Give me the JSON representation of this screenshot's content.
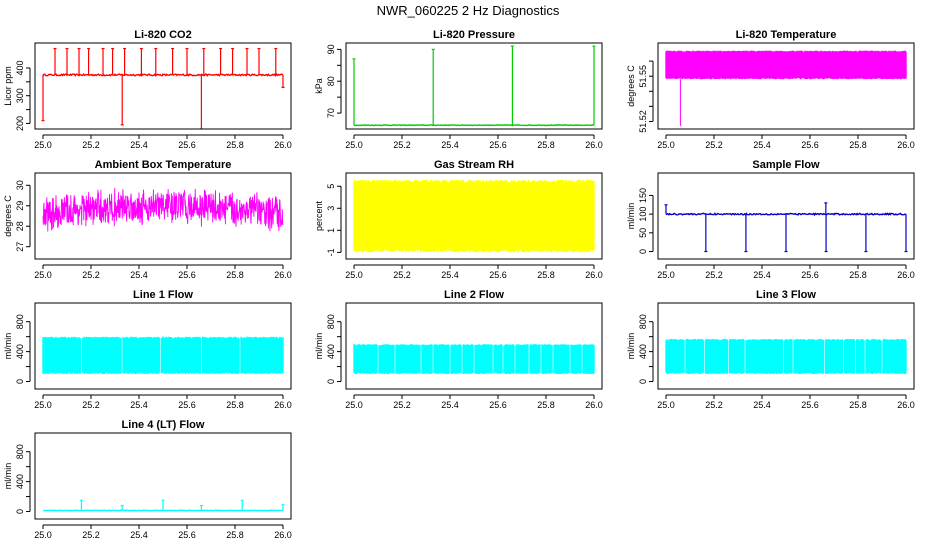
{
  "figure": {
    "title": "NWR_060225 2 Hz Diagnostics"
  },
  "chart_data": [
    {
      "id": "co2",
      "type": "line",
      "title": "Li-820 CO2",
      "ylabel": "Licor ppm",
      "color": "#ff0000",
      "xlim": [
        25.0,
        26.0
      ],
      "ylim": [
        180,
        490
      ],
      "xticks": [
        25.0,
        25.2,
        25.4,
        25.6,
        25.8,
        26.0
      ],
      "xtick_labels": [
        "25.0",
        "25.2",
        "25.4",
        "25.6",
        "25.8",
        "26.0"
      ],
      "yticks": [
        200,
        250,
        300,
        350,
        400
      ],
      "ytick_labels": [
        "200",
        "",
        "300",
        "",
        "400"
      ],
      "series": [
        {
          "name": "CO2",
          "baseline": 375,
          "noise": 3,
          "spikes": [
            [
              25.0,
              210
            ],
            [
              25.05,
              470
            ],
            [
              25.1,
              470
            ],
            [
              25.15,
              470
            ],
            [
              25.19,
              470
            ],
            [
              25.25,
              470
            ],
            [
              25.29,
              470
            ],
            [
              25.33,
              195
            ],
            [
              25.34,
              470
            ],
            [
              25.41,
              470
            ],
            [
              25.47,
              470
            ],
            [
              25.54,
              470
            ],
            [
              25.6,
              470
            ],
            [
              25.66,
              180
            ],
            [
              25.67,
              470
            ],
            [
              25.74,
              470
            ],
            [
              25.79,
              470
            ],
            [
              25.85,
              470
            ],
            [
              25.9,
              470
            ],
            [
              25.97,
              470
            ],
            [
              26.0,
              330
            ]
          ]
        }
      ]
    },
    {
      "id": "pressure",
      "type": "line",
      "title": "Li-820 Pressure",
      "ylabel": "kPa",
      "color": "#00cc00",
      "xlim": [
        25.0,
        26.0
      ],
      "ylim": [
        65,
        92
      ],
      "xticks": [
        25.0,
        25.2,
        25.4,
        25.6,
        25.8,
        26.0
      ],
      "xtick_labels": [
        "25.0",
        "25.2",
        "25.4",
        "25.6",
        "25.8",
        "26.0"
      ],
      "yticks": [
        70,
        75,
        80,
        85,
        90
      ],
      "ytick_labels": [
        "70",
        "",
        "80",
        "",
        "90"
      ],
      "series": [
        {
          "name": "Pressure",
          "baseline": 66.2,
          "noise": 0.1,
          "spikes": [
            [
              25.0,
              87
            ],
            [
              25.33,
              90
            ],
            [
              25.66,
              91
            ],
            [
              26.0,
              91
            ]
          ]
        }
      ]
    },
    {
      "id": "licor_temp",
      "type": "area",
      "title": "Li-820 Temperature",
      "ylabel": "degrees C",
      "color": "#ff00ff",
      "xlim": [
        25.0,
        26.0
      ],
      "ylim": [
        51.515,
        51.572
      ],
      "xticks": [
        25.0,
        25.2,
        25.4,
        25.6,
        25.8,
        26.0
      ],
      "xtick_labels": [
        "25.0",
        "25.2",
        "25.4",
        "25.6",
        "25.8",
        "26.0"
      ],
      "yticks": [
        51.52,
        51.53,
        51.54,
        51.55,
        51.56
      ],
      "ytick_labels": [
        "51.52",
        "",
        "",
        "51.55",
        ""
      ],
      "series": [
        {
          "name": "Temperature",
          "low": 51.548,
          "high": 51.567,
          "dip": [
            25.06,
            51.517
          ]
        }
      ]
    },
    {
      "id": "box_temp",
      "type": "area",
      "title": "Ambient Box Temperature",
      "ylabel": "degrees C",
      "color": "#ff00ff",
      "xlim": [
        25.0,
        26.0
      ],
      "ylim": [
        26.4,
        30.6
      ],
      "xticks": [
        25.0,
        25.2,
        25.4,
        25.6,
        25.8,
        26.0
      ],
      "xtick_labels": [
        "25.0",
        "25.2",
        "25.4",
        "25.6",
        "25.8",
        "26.0"
      ],
      "yticks": [
        27,
        28,
        29,
        30
      ],
      "ytick_labels": [
        "27",
        "28",
        "29",
        "30"
      ],
      "series": [
        {
          "name": "Box Temp",
          "center": 28.6,
          "amp": 0.9,
          "trend": 0.4
        }
      ]
    },
    {
      "id": "rh",
      "type": "area",
      "title": "Gas Stream RH",
      "ylabel": "percent",
      "color": "#ffff00",
      "xlim": [
        25.0,
        26.0
      ],
      "ylim": [
        -1.6,
        6.2
      ],
      "xticks": [
        25.0,
        25.2,
        25.4,
        25.6,
        25.8,
        26.0
      ],
      "xtick_labels": [
        "25.0",
        "25.2",
        "25.4",
        "25.6",
        "25.8",
        "26.0"
      ],
      "yticks": [
        -1,
        1,
        3,
        5
      ],
      "ytick_labels": [
        "-1",
        "1",
        "3",
        "5"
      ],
      "series": [
        {
          "name": "RH",
          "low": -1.0,
          "high": 5.6
        }
      ]
    },
    {
      "id": "sample_flow",
      "type": "line",
      "title": "Sample Flow",
      "ylabel": "ml/min",
      "color": "#0000cc",
      "xlim": [
        25.0,
        26.0
      ],
      "ylim": [
        -20,
        210
      ],
      "xticks": [
        25.0,
        25.2,
        25.4,
        25.6,
        25.8,
        26.0
      ],
      "xtick_labels": [
        "25.0",
        "25.2",
        "25.4",
        "25.6",
        "25.8",
        "26.0"
      ],
      "yticks": [
        0,
        50,
        100,
        150
      ],
      "ytick_labels": [
        "0",
        "50",
        "100",
        "150"
      ],
      "series": [
        {
          "name": "Sample Flow",
          "baseline": 100,
          "noise": 2,
          "spikes": [
            [
              25.0,
              125
            ],
            [
              25.166,
              0
            ],
            [
              25.333,
              0
            ],
            [
              25.5,
              0
            ],
            [
              25.666,
              130
            ],
            [
              25.667,
              0
            ],
            [
              25.833,
              0
            ],
            [
              26.0,
              0
            ]
          ]
        }
      ]
    },
    {
      "id": "line1",
      "type": "area",
      "title": "Line 1 Flow",
      "ylabel": "ml/min",
      "color": "#00ffff",
      "xlim": [
        25.0,
        26.0
      ],
      "ylim": [
        -100,
        1050
      ],
      "xticks": [
        25.0,
        25.2,
        25.4,
        25.6,
        25.8,
        26.0
      ],
      "xtick_labels": [
        "25.0",
        "25.2",
        "25.4",
        "25.6",
        "25.8",
        "26.0"
      ],
      "yticks": [
        0,
        200,
        400,
        600,
        800
      ],
      "ytick_labels": [
        "0",
        "",
        "400",
        "",
        "800"
      ],
      "series": [
        {
          "name": "Line 1",
          "low": 100,
          "high": 600,
          "gaps": [
            25.16,
            25.33,
            25.49,
            25.66,
            25.82
          ]
        }
      ]
    },
    {
      "id": "line2",
      "type": "area",
      "title": "Line 2 Flow",
      "ylabel": "ml/min",
      "color": "#00ffff",
      "xlim": [
        25.0,
        26.0
      ],
      "ylim": [
        -100,
        1050
      ],
      "xticks": [
        25.0,
        25.2,
        25.4,
        25.6,
        25.8,
        26.0
      ],
      "xtick_labels": [
        "25.0",
        "25.2",
        "25.4",
        "25.6",
        "25.8",
        "26.0"
      ],
      "yticks": [
        0,
        200,
        400,
        600,
        800
      ],
      "ytick_labels": [
        "0",
        "",
        "400",
        "",
        "800"
      ],
      "series": [
        {
          "name": "Line 2",
          "low": 100,
          "high": 500,
          "gaps": [
            25.1,
            25.17,
            25.28,
            25.33,
            25.4,
            25.45,
            25.5,
            25.58,
            25.62,
            25.67,
            25.73,
            25.78,
            25.83,
            25.9,
            25.95
          ]
        }
      ]
    },
    {
      "id": "line3",
      "type": "area",
      "title": "Line 3 Flow",
      "ylabel": "ml/min",
      "color": "#00ffff",
      "xlim": [
        25.0,
        26.0
      ],
      "ylim": [
        -100,
        1050
      ],
      "xticks": [
        25.0,
        25.2,
        25.4,
        25.6,
        25.8,
        26.0
      ],
      "xtick_labels": [
        "25.0",
        "25.2",
        "25.4",
        "25.6",
        "25.8",
        "26.0"
      ],
      "yticks": [
        0,
        200,
        400,
        600,
        800
      ],
      "ytick_labels": [
        "0",
        "",
        "400",
        "",
        "800"
      ],
      "series": [
        {
          "name": "Line 3",
          "low": 100,
          "high": 570,
          "gaps": [
            25.08,
            25.16,
            25.26,
            25.33,
            25.49,
            25.53,
            25.66,
            25.74,
            25.79,
            25.83,
            25.9
          ]
        }
      ]
    },
    {
      "id": "line4",
      "type": "line",
      "title": "Line 4 (LT) Flow",
      "ylabel": "ml/min",
      "color": "#00ffff",
      "xlim": [
        25.0,
        26.0
      ],
      "ylim": [
        -100,
        1050
      ],
      "xticks": [
        25.0,
        25.2,
        25.4,
        25.6,
        25.8,
        26.0
      ],
      "xtick_labels": [
        "25.0",
        "25.2",
        "25.4",
        "25.6",
        "25.8",
        "26.0"
      ],
      "yticks": [
        0,
        200,
        400,
        600,
        800
      ],
      "ytick_labels": [
        "0",
        "",
        "400",
        "",
        "800"
      ],
      "series": [
        {
          "name": "Line 4",
          "baseline": 15,
          "noise": 3,
          "spikes": [
            [
              25.16,
              150
            ],
            [
              25.33,
              80
            ],
            [
              25.5,
              150
            ],
            [
              25.66,
              80
            ],
            [
              25.83,
              150
            ],
            [
              26.0,
              90
            ]
          ]
        }
      ]
    }
  ]
}
